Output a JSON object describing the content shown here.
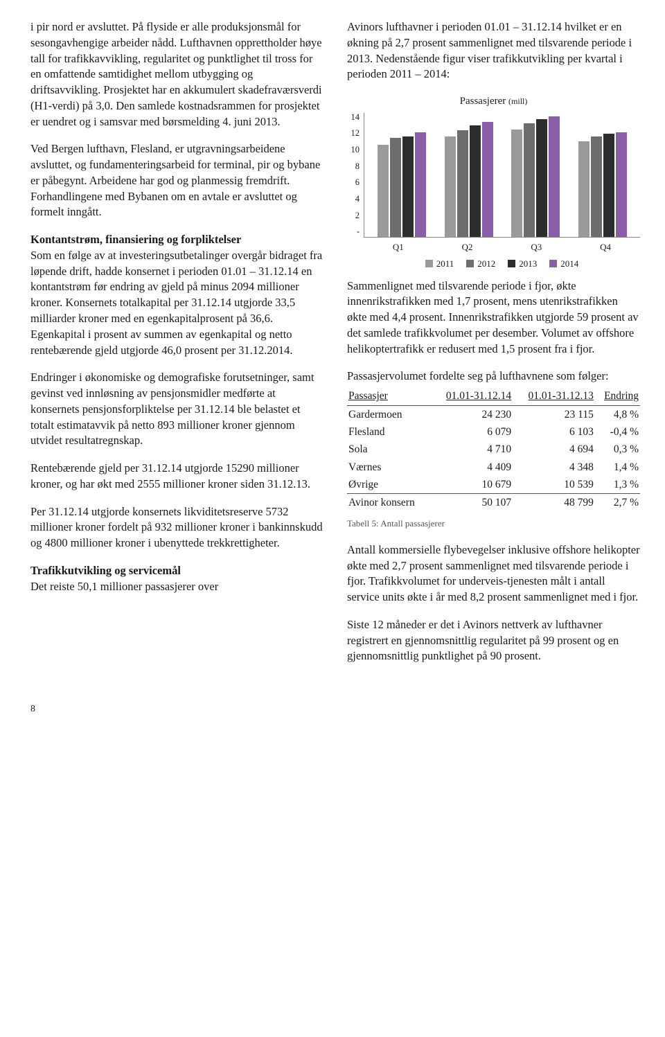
{
  "left": {
    "p1": "i pir nord er avsluttet. På flyside er alle produksjonsmål for sesongavhengige arbeider nådd. Lufthavnen opprettholder høye tall for trafikkavvikling, regularitet og punktlighet til tross for en omfattende samtidighet mellom utbygging og driftsavvikling. Prosjektet har en akkumulert skadefraværsverdi (H1-verdi) på 3,0. Den samlede kostnadsrammen for prosjektet er uendret og i samsvar med børsmelding 4. juni 2013.",
    "p2": "Ved Bergen lufthavn, Flesland, er utgravnings­arbeidene avsluttet, og fundamenteringsarbeid for terminal, pir og bybane er påbegynt. Arbeidene har god og planmessig fremdrift. Forhandlingene med Bybanen om en avtale er avsluttet og formelt inngått.",
    "h1": "Kontantstrøm, finansiering og forpliktelser",
    "p3": "Som en følge av at investeringsutbetalinger overgår bidraget fra løpende drift, hadde konsernet i perioden 01.01 – 31.12.14 en kontantstrøm før endring av gjeld på minus 2094 millioner kroner. Konsernets totalkapital per 31.12.14 utgjorde 33,5 milliarder kroner med en egenkapitalprosent på 36,6. Egenkapital i prosent av summen av egenkapital og netto rentebærende gjeld utgjorde 46,0 prosent per 31.12.2014.",
    "p4": "Endringer i økonomiske og demografiske forutsetninger,  samt gevinst ved innløsning av pensjonsmidler medførte at konsernets pensjonsforpliktelse per 31.12.14 ble belastet et totalt estimatavvik på netto 893 millioner kroner gjennom utvidet resultatregnskap.",
    "p5": "Rentebærende gjeld per 31.12.14 utgjorde 15290 millioner kroner, og har økt med 2555 millioner kroner siden 31.12.13.",
    "p6": "Per 31.12.14 utgjorde konsernets likviditets­reserve 5732 millioner kroner fordelt på 932 millioner kroner i bankinnskudd og 4800 millioner kroner i ubenyttede trekkrettigheter.",
    "h2": "Trafikkutvikling og servicemål",
    "p7": "Det reiste 50,1 millioner passasjerer over"
  },
  "right": {
    "p1": "Avinors lufthavner i perioden 01.01 – 31.12.14 hvilket er en økning på 2,7 prosent sammenlignet med tilsvarende periode i 2013. Nedenstående figur viser trafikkutvikling per kvartal i perioden 2011 – 2014:",
    "p2": "Sammenlignet med tilsvarende periode i fjor, økte innenrikstrafikken med 1,7 prosent, mens utenrikstrafikken økte med 4,4 prosent. Innenrikstrafikken utgjorde 59 prosent av det samlede trafikkvolumet per desember. Volumet av offshore helikoptertrafikk er redusert med 1,5 prosent fra i fjor.",
    "p3": "Passasjervolumet fordelte seg på lufthavnene som følger:",
    "table_caption": "Tabell 5: Antall passasjerer",
    "p4": "Antall kommersielle flybevegelser inklusive offshore helikopter økte med 2,7 prosent sammenlignet med tilsvarende periode i fjor. Trafikkvolumet for underveis-tjenesten målt i antall service units økte i år med 8,2 prosent sammenlignet med i fjor.",
    "p5": "Siste 12 måneder er det i Avinors nettverk av lufthavner registrert en gjennomsnittlig regularitet på 99 prosent og en gjennomsnittlig punktlighet på 90 prosent."
  },
  "chart": {
    "title": "Passasjerer",
    "unit": "(mill)",
    "ymax": 14,
    "ytick_step": 2,
    "yticks": [
      "14",
      "12",
      "10",
      "8",
      "6",
      "4",
      "2",
      "-"
    ],
    "categories": [
      "Q1",
      "Q2",
      "Q3",
      "Q4"
    ],
    "series": [
      {
        "label": "2011",
        "color": "#9a9a9a",
        "values": [
          10.4,
          11.3,
          12.1,
          10.8
        ]
      },
      {
        "label": "2012",
        "color": "#6d6d6d",
        "values": [
          11.2,
          12.0,
          12.8,
          11.3
        ]
      },
      {
        "label": "2013",
        "color": "#2d2d2d",
        "values": [
          11.3,
          12.6,
          13.3,
          11.6
        ]
      },
      {
        "label": "2014",
        "color": "#8b5fa8",
        "values": [
          11.8,
          13.0,
          13.6,
          11.8
        ]
      }
    ],
    "title_fontsize": 15,
    "label_fontsize": 13,
    "grid_color": "#888888",
    "background": "#ffffff"
  },
  "table": {
    "columns": [
      "Passasjer",
      "01.01-31.12.14",
      "01.01-31.12.13",
      "Endring"
    ],
    "rows": [
      [
        "Gardermoen",
        "24 230",
        "23 115",
        "4,8 %"
      ],
      [
        "Flesland",
        "6 079",
        "6 103",
        "-0,4 %"
      ],
      [
        "Sola",
        "4 710",
        "4 694",
        "0,3 %"
      ],
      [
        "Værnes",
        "4 409",
        "4 348",
        "1,4 %"
      ],
      [
        "Øvrige",
        "10 679",
        "10 539",
        "1,3 %"
      ],
      [
        "Avinor konsern",
        "50 107",
        "48 799",
        "2,7 %"
      ]
    ]
  },
  "page_number": "8"
}
